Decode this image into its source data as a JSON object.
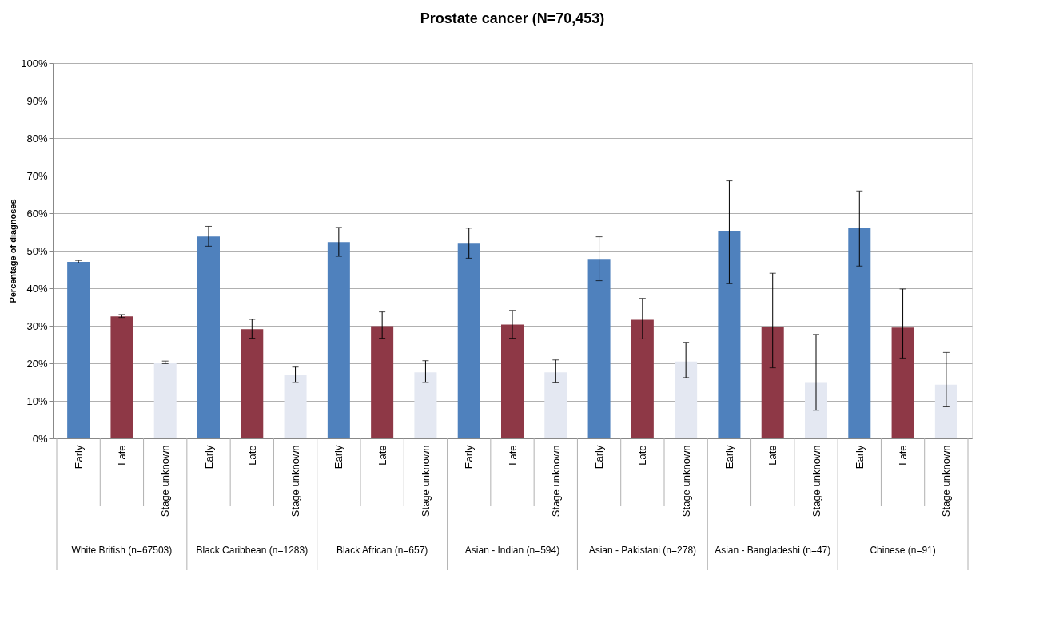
{
  "chart_data": {
    "type": "bar",
    "title": "Prostate cancer (N=70,453)",
    "ylabel": "Percentage of diagnoses",
    "categories": [
      "Early",
      "Late",
      "Stage unknown",
      "Early",
      "Late",
      "Stage unknown",
      "Early",
      "Late",
      "Stage unknown",
      "Early",
      "Late",
      "Stage unknown",
      "Early",
      "Late",
      "Stage unknown",
      "Early",
      "Late",
      "Stage unknown",
      "Early",
      "Late",
      "Stage unknown"
    ],
    "values": [
      47.0,
      32.5,
      20.1,
      53.8,
      29.1,
      16.8,
      52.3,
      29.9,
      17.6,
      52.1,
      30.3,
      17.6,
      47.8,
      31.6,
      20.5,
      55.3,
      29.7,
      14.8,
      56.0,
      29.5,
      14.3
    ],
    "colors": [
      "#4f81bd",
      "#8e3846",
      "#e4e8f2",
      "#4f81bd",
      "#8e3846",
      "#e4e8f2",
      "#4f81bd",
      "#8e3846",
      "#e4e8f2",
      "#4f81bd",
      "#8e3846",
      "#e4e8f2",
      "#4f81bd",
      "#8e3846",
      "#e4e8f2",
      "#4f81bd",
      "#8e3846",
      "#e4e8f2",
      "#4f81bd",
      "#8e3846",
      "#e4e8f2"
    ],
    "errors": [
      [
        46.7,
        47.4
      ],
      [
        32.2,
        33.0
      ],
      [
        19.9,
        20.6
      ],
      [
        51.2,
        56.5
      ],
      [
        26.7,
        31.7
      ],
      [
        14.9,
        19.0
      ],
      [
        48.5,
        56.2
      ],
      [
        26.7,
        33.7
      ],
      [
        14.9,
        20.7
      ],
      [
        48.0,
        56.0
      ],
      [
        26.7,
        34.1
      ],
      [
        14.8,
        20.9
      ],
      [
        42.0,
        53.7
      ],
      [
        26.5,
        37.3
      ],
      [
        16.2,
        25.6
      ],
      [
        41.2,
        68.6
      ],
      [
        18.8,
        44.0
      ],
      [
        7.5,
        27.7
      ],
      [
        45.9,
        65.9
      ],
      [
        21.4,
        39.8
      ],
      [
        8.4,
        22.9
      ]
    ],
    "annotations": [
      "White British (n=67503)",
      "Black Caribbean (n=1283)",
      "Black African (n=657)",
      "Asian - Indian (n=594)",
      "Asian - Pakistani (n=278)",
      "Asian - Bangladeshi (n=47)",
      "Chinese (n=91)"
    ],
    "ylim": [
      0,
      100
    ],
    "yticks": [
      {
        "value": 0,
        "label": "0%"
      },
      {
        "value": 10,
        "label": "10%"
      },
      {
        "value": 20,
        "label": "20%"
      },
      {
        "value": 30,
        "label": "30%"
      },
      {
        "value": 40,
        "label": "40%"
      },
      {
        "value": 50,
        "label": "50%"
      },
      {
        "value": 60,
        "label": "60%"
      },
      {
        "value": 70,
        "label": "70%"
      },
      {
        "value": 80,
        "label": "80%"
      },
      {
        "value": 90,
        "label": "90%"
      },
      {
        "value": 100,
        "label": "100%"
      }
    ],
    "grid": "y"
  }
}
